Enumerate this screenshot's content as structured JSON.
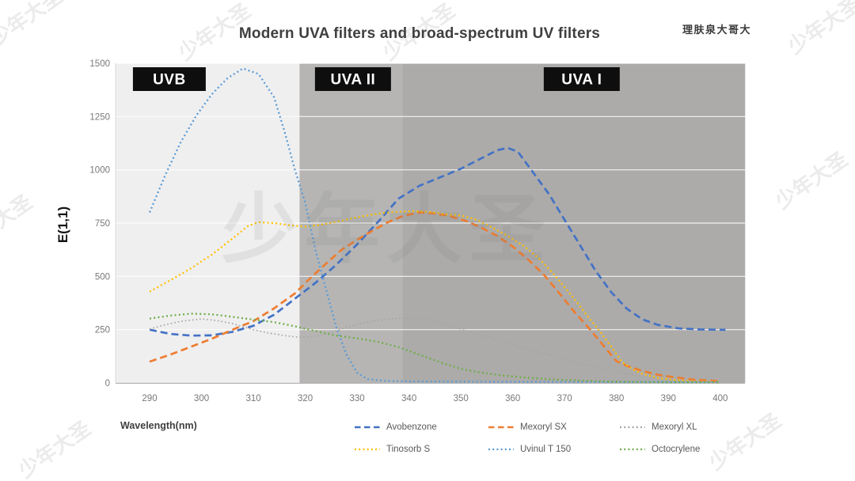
{
  "header": {
    "brand": "理肤泉大哥大"
  },
  "watermark": {
    "text": "少年大圣"
  },
  "chart_data": {
    "type": "line",
    "title": "Modern UVA filters and broad-spectrum UV filters",
    "xlabel": "Wavelength(nm)",
    "ylabel": "E(1,1)",
    "xlim": [
      283.4,
      404.8
    ],
    "ylim": [
      0,
      1500
    ],
    "x_ticks": [
      290,
      300,
      310,
      320,
      330,
      340,
      350,
      360,
      370,
      380,
      390,
      400
    ],
    "y_ticks": [
      0,
      250,
      500,
      750,
      1000,
      1250,
      1500
    ],
    "grid": "horizontal",
    "gridline_color": "#ffffff",
    "axis_text_color": "#787878",
    "legend_position": "bottom",
    "bands": [
      {
        "label": "UVB",
        "from_nm": 283.4,
        "to_nm": 318.9,
        "color": "#efeff0",
        "label_center_nm": 293.8,
        "label_box_color": "#0e0e0e",
        "label_text_color": "#ffffff"
      },
      {
        "label": "UVA II",
        "from_nm": 318.9,
        "to_nm": 338.7,
        "color": "#b6b5b4",
        "label_center_nm": 329.2,
        "label_box_color": "#0e0e0e",
        "label_text_color": "#ffffff"
      },
      {
        "label": "UVA I",
        "from_nm": 338.7,
        "to_nm": 404.8,
        "color": "#acabaa",
        "label_center_nm": 373.3,
        "label_box_color": "#0e0e0e",
        "label_text_color": "#ffffff"
      }
    ],
    "series": [
      {
        "name": "Avobenzone",
        "color": "#4472C4",
        "style": "dashed",
        "width": 2.7,
        "points": [
          [
            290,
            250
          ],
          [
            294,
            230
          ],
          [
            298,
            222
          ],
          [
            302,
            223
          ],
          [
            306,
            240
          ],
          [
            310,
            268
          ],
          [
            314,
            320
          ],
          [
            318,
            395
          ],
          [
            322,
            470
          ],
          [
            326,
            555
          ],
          [
            330,
            650
          ],
          [
            334,
            755
          ],
          [
            338,
            865
          ],
          [
            342,
            925
          ],
          [
            346,
            965
          ],
          [
            350,
            1005
          ],
          [
            354,
            1055
          ],
          [
            357,
            1092
          ],
          [
            359,
            1103
          ],
          [
            361,
            1085
          ],
          [
            364,
            985
          ],
          [
            367,
            885
          ],
          [
            370,
            765
          ],
          [
            373,
            645
          ],
          [
            376,
            525
          ],
          [
            379,
            425
          ],
          [
            382,
            348
          ],
          [
            385,
            298
          ],
          [
            388,
            272
          ],
          [
            392,
            256
          ],
          [
            396,
            251
          ],
          [
            401,
            249
          ]
        ]
      },
      {
        "name": "Mexoryl SX",
        "color": "#ED7D31",
        "style": "dashed",
        "width": 2.7,
        "points": [
          [
            290,
            100
          ],
          [
            294,
            133
          ],
          [
            298,
            170
          ],
          [
            302,
            207
          ],
          [
            306,
            250
          ],
          [
            310,
            290
          ],
          [
            314,
            350
          ],
          [
            318,
            420
          ],
          [
            321,
            492
          ],
          [
            324,
            560
          ],
          [
            327,
            625
          ],
          [
            330,
            672
          ],
          [
            333,
            715
          ],
          [
            336,
            755
          ],
          [
            339,
            785
          ],
          [
            342,
            800
          ],
          [
            345,
            795
          ],
          [
            348,
            782
          ],
          [
            351,
            760
          ],
          [
            354,
            728
          ],
          [
            357,
            690
          ],
          [
            360,
            640
          ],
          [
            363,
            578
          ],
          [
            366,
            508
          ],
          [
            369,
            420
          ],
          [
            372,
            330
          ],
          [
            375,
            248
          ],
          [
            378,
            160
          ],
          [
            380,
            102
          ],
          [
            382,
            80
          ],
          [
            385,
            56
          ],
          [
            388,
            38
          ],
          [
            391,
            27
          ],
          [
            395,
            15
          ],
          [
            400,
            8
          ]
        ]
      },
      {
        "name": "Mexoryl XL",
        "color": "#A5A4A3",
        "style": "dotted-fine",
        "width": 1.7,
        "points": [
          [
            290,
            253
          ],
          [
            293,
            273
          ],
          [
            296,
            289
          ],
          [
            300,
            300
          ],
          [
            303,
            293
          ],
          [
            306,
            278
          ],
          [
            310,
            250
          ],
          [
            313,
            234
          ],
          [
            316,
            222
          ],
          [
            319,
            214
          ],
          [
            322,
            219
          ],
          [
            325,
            236
          ],
          [
            328,
            262
          ],
          [
            331,
            281
          ],
          [
            334,
            293
          ],
          [
            337,
            301
          ],
          [
            340,
            305
          ],
          [
            343,
            303
          ],
          [
            346,
            285
          ],
          [
            350,
            252
          ],
          [
            355,
            215
          ],
          [
            360,
            180
          ],
          [
            365,
            145
          ],
          [
            370,
            112
          ],
          [
            375,
            80
          ],
          [
            380,
            52
          ],
          [
            385,
            30
          ],
          [
            390,
            15
          ],
          [
            395,
            6
          ],
          [
            400,
            2
          ]
        ]
      },
      {
        "name": "Tinosorb S",
        "color": "#FFC000",
        "style": "dotted",
        "width": 2.3,
        "points": [
          [
            290,
            428
          ],
          [
            294,
            482
          ],
          [
            298,
            538
          ],
          [
            302,
            602
          ],
          [
            306,
            678
          ],
          [
            309,
            737
          ],
          [
            311,
            754
          ],
          [
            314,
            750
          ],
          [
            317,
            740
          ],
          [
            320,
            733
          ],
          [
            323,
            742
          ],
          [
            326,
            756
          ],
          [
            329,
            772
          ],
          [
            332,
            786
          ],
          [
            335,
            798
          ],
          [
            338,
            803
          ],
          [
            341,
            806
          ],
          [
            344,
            802
          ],
          [
            347,
            792
          ],
          [
            350,
            786
          ],
          [
            353,
            766
          ],
          [
            356,
            730
          ],
          [
            359,
            690
          ],
          [
            362,
            645
          ],
          [
            365,
            585
          ],
          [
            368,
            508
          ],
          [
            371,
            420
          ],
          [
            373,
            358
          ],
          [
            375,
            295
          ],
          [
            377,
            235
          ],
          [
            379,
            170
          ],
          [
            381,
            100
          ],
          [
            383,
            65
          ],
          [
            385,
            42
          ],
          [
            388,
            23
          ],
          [
            391,
            14
          ],
          [
            395,
            7
          ],
          [
            400,
            4
          ]
        ]
      },
      {
        "name": "Uvinul T 150",
        "color": "#5B9BD5",
        "style": "dotted",
        "width": 2.3,
        "points": [
          [
            290,
            800
          ],
          [
            293,
            975
          ],
          [
            296,
            1130
          ],
          [
            299,
            1255
          ],
          [
            302,
            1355
          ],
          [
            305,
            1430
          ],
          [
            308,
            1476
          ],
          [
            311,
            1450
          ],
          [
            314,
            1340
          ],
          [
            316,
            1180
          ],
          [
            318,
            1000
          ],
          [
            320,
            845
          ],
          [
            322,
            620
          ],
          [
            324,
            440
          ],
          [
            326,
            260
          ],
          [
            328,
            130
          ],
          [
            330,
            48
          ],
          [
            332,
            18
          ],
          [
            335,
            10
          ],
          [
            340,
            7
          ],
          [
            350,
            6
          ],
          [
            360,
            5
          ],
          [
            370,
            5
          ],
          [
            380,
            4
          ],
          [
            390,
            4
          ],
          [
            400,
            4
          ]
        ]
      },
      {
        "name": "Octocrylene",
        "color": "#70AD47",
        "style": "dotted",
        "width": 2.3,
        "points": [
          [
            290,
            302
          ],
          [
            294,
            316
          ],
          [
            298,
            325
          ],
          [
            302,
            322
          ],
          [
            306,
            310
          ],
          [
            310,
            297
          ],
          [
            314,
            285
          ],
          [
            318,
            266
          ],
          [
            322,
            243
          ],
          [
            326,
            222
          ],
          [
            330,
            209
          ],
          [
            334,
            193
          ],
          [
            338,
            168
          ],
          [
            342,
            132
          ],
          [
            346,
            97
          ],
          [
            350,
            66
          ],
          [
            354,
            48
          ],
          [
            358,
            35
          ],
          [
            362,
            26
          ],
          [
            366,
            19
          ],
          [
            370,
            14
          ],
          [
            375,
            9
          ],
          [
            380,
            6
          ],
          [
            385,
            4
          ],
          [
            390,
            3
          ],
          [
            395,
            3
          ],
          [
            400,
            3
          ]
        ]
      }
    ]
  }
}
